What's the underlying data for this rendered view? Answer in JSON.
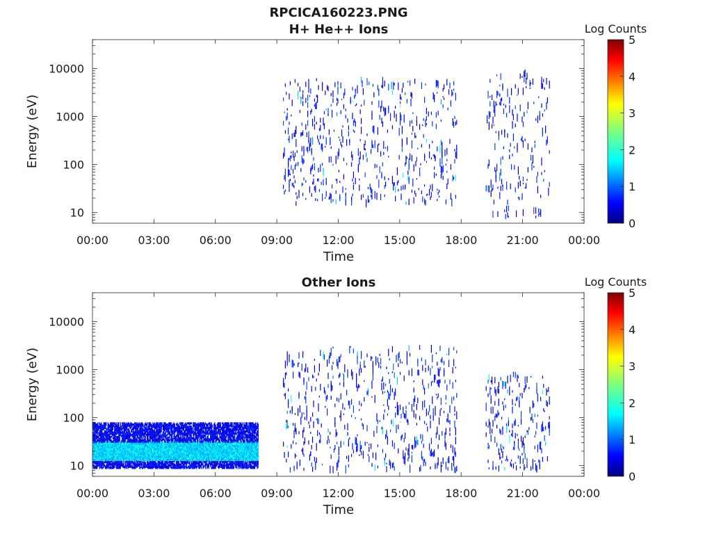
{
  "figure": {
    "title": "RPCICA160223.PNG"
  },
  "colorbar": {
    "label": "Log Counts",
    "min": 0,
    "max": 5,
    "ticks": [
      "0",
      "1",
      "2",
      "3",
      "4",
      "5"
    ],
    "colormap": "jet",
    "colors": [
      "#00007f",
      "#0000ff",
      "#007fff",
      "#00ffff",
      "#7fff7f",
      "#ffff00",
      "#ff7f00",
      "#ff0000",
      "#7f0000"
    ]
  },
  "chart_data": [
    {
      "type": "heatmap",
      "title": "H+ He++ Ions",
      "xlabel": "Time",
      "ylabel": "Energy (eV)",
      "yscale": "log",
      "xlim": [
        "00:00",
        "24:00"
      ],
      "ylim": [
        6,
        40000
      ],
      "xticks": [
        "00:00",
        "03:00",
        "06:00",
        "09:00",
        "12:00",
        "15:00",
        "18:00",
        "21:00",
        "00:00"
      ],
      "yticks": [
        "10",
        "100",
        "1000",
        "10000"
      ],
      "activity_blocks": [
        {
          "start_hour": 9.3,
          "end_hour": 17.8,
          "energy_min_eV": 15,
          "energy_max_eV": 6000,
          "typical_log_counts": 0.3,
          "peak_log_counts": 1.8
        },
        {
          "start_hour": 19.2,
          "end_hour": 22.3,
          "energy_min_eV": 8,
          "energy_max_eV": 8000,
          "typical_log_counts": 0.3,
          "peak_log_counts": 1.2
        }
      ]
    },
    {
      "type": "heatmap",
      "title": "Other Ions",
      "xlabel": "Time",
      "ylabel": "Energy (eV)",
      "yscale": "log",
      "xlim": [
        "00:00",
        "24:00"
      ],
      "ylim": [
        6,
        40000
      ],
      "xticks": [
        "00:00",
        "03:00",
        "06:00",
        "09:00",
        "12:00",
        "15:00",
        "18:00",
        "21:00",
        "00:00"
      ],
      "yticks": [
        "10",
        "100",
        "1000",
        "10000"
      ],
      "activity_blocks": [
        {
          "start_hour": 0.0,
          "end_hour": 8.1,
          "energy_min_eV": 9,
          "energy_max_eV": 80,
          "typical_log_counts": 1.0,
          "peak_log_counts": 1.8,
          "band_min_eV": 13,
          "band_max_eV": 30
        },
        {
          "start_hour": 9.3,
          "end_hour": 17.8,
          "energy_min_eV": 8,
          "energy_max_eV": 3000,
          "typical_log_counts": 0.3,
          "peak_log_counts": 1.8
        },
        {
          "start_hour": 19.2,
          "end_hour": 22.3,
          "energy_min_eV": 8,
          "energy_max_eV": 800,
          "typical_log_counts": 0.5,
          "peak_log_counts": 1.8
        }
      ]
    }
  ]
}
